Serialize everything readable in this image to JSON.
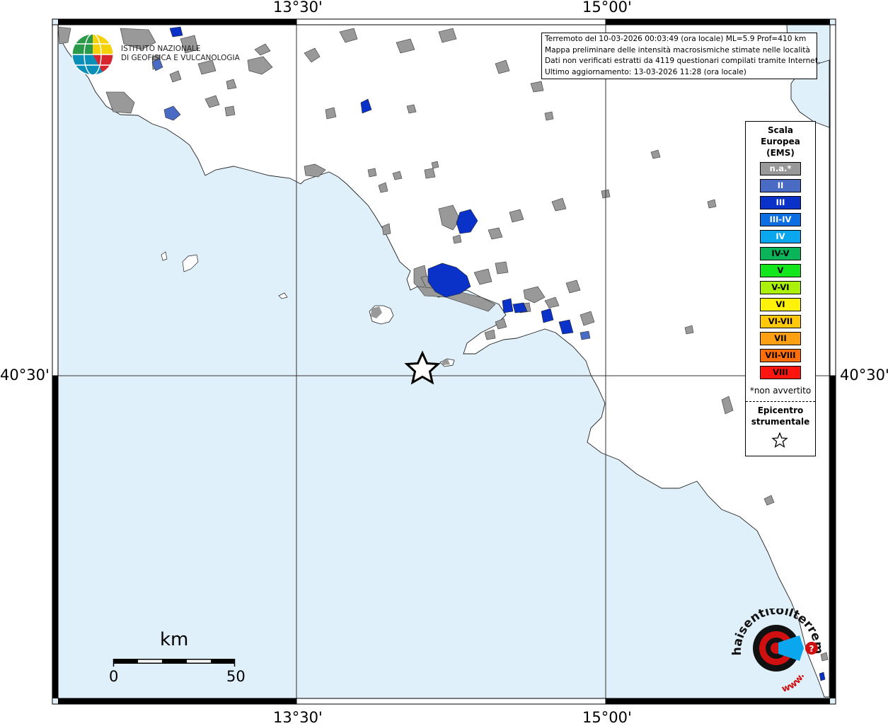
{
  "map": {
    "graticule": {
      "top_labels": [
        "13°30'",
        "15°00'"
      ],
      "bottom_labels": [
        "13°30'",
        "15°00'"
      ],
      "left_label": "40°30'",
      "right_label": "40°30'"
    },
    "sea_color": "#e0f0fb",
    "land_color": "#ffffff",
    "na_color": "#999999"
  },
  "info": {
    "line1": "Terremoto del 10-03-2026 00:03:49 (ora locale) ML=5.9 Prof=410 km",
    "line2": "Mappa preliminare delle intensità macrosismiche stimate nelle località",
    "line3": "Dati non verificati estratti da 4119 questionari compilati tramite Internet.",
    "line4": "Ultimo aggiornamento: 13-03-2026 11:28 (ora locale)"
  },
  "legend": {
    "title_lines": [
      "Scala",
      "Europea",
      "(EMS)"
    ],
    "items": [
      {
        "label": "n.a.*",
        "color": "#999999",
        "text_color": "#ffffff"
      },
      {
        "label": "II",
        "color": "#4a6bc4",
        "text_color": "#ffffff"
      },
      {
        "label": "III",
        "color": "#0a32c8",
        "text_color": "#ffffff"
      },
      {
        "label": "III-IV",
        "color": "#0c6ee0",
        "text_color": "#ffffff"
      },
      {
        "label": "IV",
        "color": "#0aa6ee",
        "text_color": "#ffffff"
      },
      {
        "label": "IV-V",
        "color": "#0ab55a",
        "text_color": "#000000"
      },
      {
        "label": "V",
        "color": "#14e61e",
        "text_color": "#000000"
      },
      {
        "label": "V-VI",
        "color": "#aaf00a",
        "text_color": "#000000"
      },
      {
        "label": "VI",
        "color": "#fff20a",
        "text_color": "#000000"
      },
      {
        "label": "VI-VII",
        "color": "#ffc80a",
        "text_color": "#000000"
      },
      {
        "label": "VII",
        "color": "#ffa014",
        "text_color": "#000000"
      },
      {
        "label": "VII-VIII",
        "color": "#ff6e0a",
        "text_color": "#000000"
      },
      {
        "label": "VIII",
        "color": "#ff1410",
        "text_color": "#000000"
      }
    ],
    "note": "*non avvertito",
    "epicenter_lines": [
      "Epicentro",
      "strumentale"
    ],
    "star_icon": "star-outline-icon"
  },
  "logo": {
    "ingv_line1": "ISTITUTO NAZIONALE",
    "ingv_line2": "DI GEOFISICA E VULCANOLOGIA",
    "hs_text": "haisentitoilterremoto.it",
    "hs_www": "www."
  },
  "scale_bar": {
    "unit": "km",
    "min_label": "0",
    "max_label": "50"
  }
}
